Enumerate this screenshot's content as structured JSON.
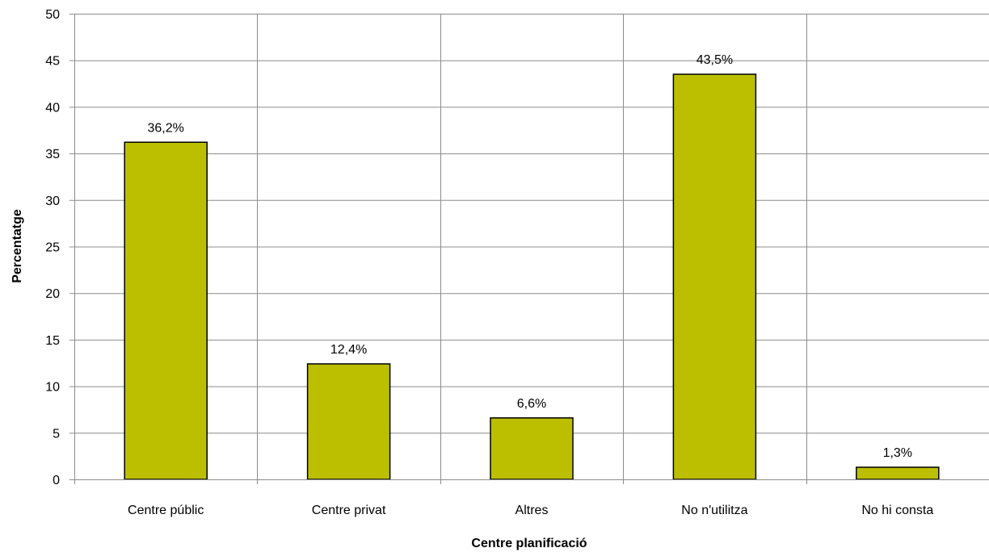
{
  "chart_data": {
    "type": "bar",
    "title": "",
    "xlabel": "Centre planificació",
    "ylabel": "Percentatge",
    "categories": [
      "Centre públic",
      "Centre privat",
      "Altres",
      "No n'utilitza",
      "No hi consta"
    ],
    "values": [
      36.2,
      12.4,
      6.6,
      43.5,
      1.3
    ],
    "value_labels": [
      "36,2%",
      "12,4%",
      "6,6%",
      "43,5%",
      "1,3%"
    ],
    "ylim": [
      0,
      50
    ],
    "yticks": [
      0,
      5,
      10,
      15,
      20,
      25,
      30,
      35,
      40,
      45,
      50
    ],
    "grid": true,
    "legend": "none",
    "colors": {
      "bar": "#bcbf00",
      "bar_edge": "#000000",
      "grid": "#8c8c8c",
      "axis": "#8c8c8c"
    }
  }
}
